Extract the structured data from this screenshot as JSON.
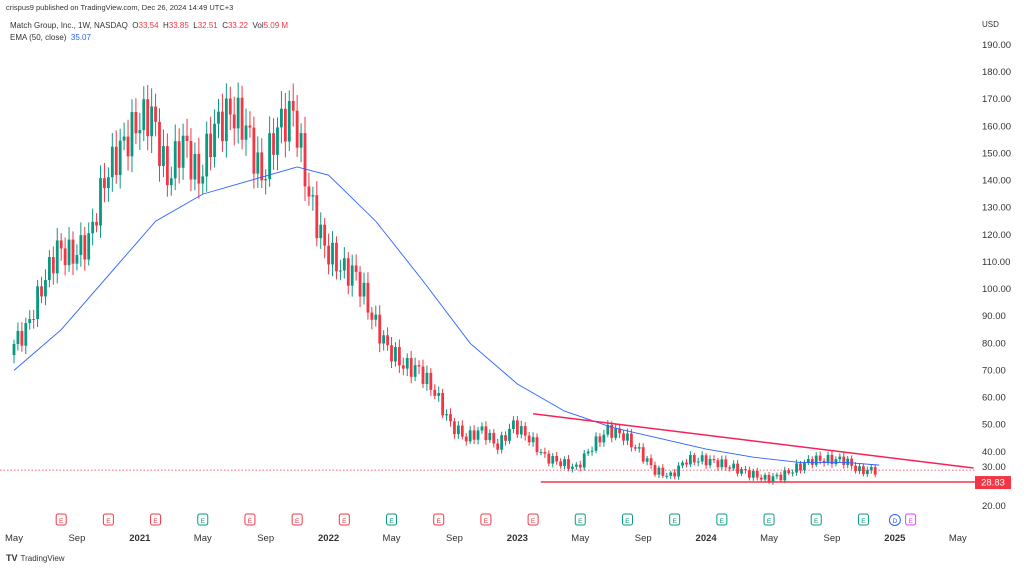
{
  "header": {
    "published": "crispus9 published on TradingView.com, Dec 26, 2024 14:49 UTC+3"
  },
  "legend": {
    "symbol": "Match Group, Inc., 1W, NASDAQ",
    "o_label": "O",
    "o": "33.54",
    "h_label": "H",
    "h": "33.85",
    "l_label": "L",
    "l": "32.51",
    "c_label": "C",
    "c": "33.22",
    "vol_label": "Vol",
    "vol": "5.09 M",
    "ema_label": "EMA (50, close)",
    "ema": "35.07"
  },
  "brand": "TradingView",
  "colors": {
    "up": "#089981",
    "down": "#f23645",
    "ema": "#2962ff",
    "trendline": "#f7215a",
    "support": "#f23645"
  },
  "chart_data": {
    "type": "candlestick",
    "currency": "USD",
    "ylim": [
      20,
      190
    ],
    "yticks": [
      "190.00",
      "180.00",
      "170.00",
      "160.00",
      "150.00",
      "140.00",
      "130.00",
      "120.00",
      "110.00",
      "100.00",
      "90.00",
      "80.00",
      "70.00",
      "60.00",
      "50.00",
      "40.00",
      "30.00",
      "20.00"
    ],
    "xticks": [
      [
        "2020-05",
        "May",
        false
      ],
      [
        "2020-09",
        "Sep",
        false
      ],
      [
        "2021-01",
        "2021",
        true
      ],
      [
        "2021-05",
        "May",
        false
      ],
      [
        "2021-09",
        "Sep",
        false
      ],
      [
        "2022-01",
        "2022",
        true
      ],
      [
        "2022-05",
        "May",
        false
      ],
      [
        "2022-09",
        "Sep",
        false
      ],
      [
        "2023-01",
        "2023",
        true
      ],
      [
        "2023-05",
        "May",
        false
      ],
      [
        "2023-09",
        "Sep",
        false
      ],
      [
        "2024-01",
        "2024",
        true
      ],
      [
        "2024-05",
        "May",
        false
      ],
      [
        "2024-09",
        "Sep",
        false
      ],
      [
        "2025-01",
        "2025",
        true
      ],
      [
        "2025-05",
        "May",
        false
      ]
    ],
    "monthly_close": [
      [
        "2020-05",
        78
      ],
      [
        "2020-06",
        85
      ],
      [
        "2020-07",
        100
      ],
      [
        "2020-08",
        115
      ],
      [
        "2020-09",
        112
      ],
      [
        "2020-10",
        118
      ],
      [
        "2020-11",
        140
      ],
      [
        "2020-12",
        152
      ],
      [
        "2021-01",
        160
      ],
      [
        "2021-02",
        165
      ],
      [
        "2021-03",
        140
      ],
      [
        "2021-04",
        155
      ],
      [
        "2021-05",
        140
      ],
      [
        "2021-06",
        160
      ],
      [
        "2021-07",
        165
      ],
      [
        "2021-08",
        160
      ],
      [
        "2021-09",
        140
      ],
      [
        "2021-10",
        160
      ],
      [
        "2021-11",
        165
      ],
      [
        "2021-12",
        135
      ],
      [
        "2022-01",
        115
      ],
      [
        "2022-02",
        108
      ],
      [
        "2022-03",
        105
      ],
      [
        "2022-04",
        90
      ],
      [
        "2022-05",
        78
      ],
      [
        "2022-06",
        72
      ],
      [
        "2022-07",
        70
      ],
      [
        "2022-08",
        62
      ],
      [
        "2022-09",
        50
      ],
      [
        "2022-10",
        45
      ],
      [
        "2022-11",
        48
      ],
      [
        "2022-12",
        42
      ],
      [
        "2023-01",
        50
      ],
      [
        "2023-02",
        45
      ],
      [
        "2023-03",
        38
      ],
      [
        "2023-04",
        36
      ],
      [
        "2023-05",
        34
      ],
      [
        "2023-06",
        42
      ],
      [
        "2023-07",
        48
      ],
      [
        "2023-08",
        46
      ],
      [
        "2023-09",
        40
      ],
      [
        "2023-10",
        33
      ],
      [
        "2023-11",
        31
      ],
      [
        "2023-12",
        37
      ],
      [
        "2024-01",
        37
      ],
      [
        "2024-02",
        36
      ],
      [
        "2024-03",
        34
      ],
      [
        "2024-04",
        32
      ],
      [
        "2024-05",
        30
      ],
      [
        "2024-06",
        31
      ],
      [
        "2024-07",
        34
      ],
      [
        "2024-08",
        37
      ],
      [
        "2024-09",
        37
      ],
      [
        "2024-10",
        37
      ],
      [
        "2024-11",
        33
      ],
      [
        "2024-12",
        33.22
      ]
    ],
    "ema50": [
      [
        "2020-05",
        70
      ],
      [
        "2020-08",
        85
      ],
      [
        "2020-11",
        105
      ],
      [
        "2021-02",
        125
      ],
      [
        "2021-05",
        135
      ],
      [
        "2021-08",
        140
      ],
      [
        "2021-11",
        145
      ],
      [
        "2022-01",
        142
      ],
      [
        "2022-04",
        125
      ],
      [
        "2022-07",
        103
      ],
      [
        "2022-10",
        80
      ],
      [
        "2023-01",
        65
      ],
      [
        "2023-04",
        55
      ],
      [
        "2023-07",
        49
      ],
      [
        "2023-10",
        45
      ],
      [
        "2024-01",
        41
      ],
      [
        "2024-04",
        38
      ],
      [
        "2024-07",
        36
      ],
      [
        "2024-10",
        36
      ],
      [
        "2024-12",
        35.07
      ]
    ],
    "last_price": 33.22,
    "support": {
      "value": 28.83,
      "label": "28.83",
      "from": "2023-03"
    },
    "resistance": {
      "from": [
        "2023-02",
        54
      ],
      "to": [
        "2025-06",
        34
      ]
    },
    "events": [
      [
        "2020-08",
        "E",
        "down"
      ],
      [
        "2020-11",
        "E",
        "down"
      ],
      [
        "2021-02",
        "E",
        "down"
      ],
      [
        "2021-05",
        "E",
        "up"
      ],
      [
        "2021-08",
        "E",
        "down"
      ],
      [
        "2021-11",
        "E",
        "down"
      ],
      [
        "2022-02",
        "E",
        "down"
      ],
      [
        "2022-05",
        "E",
        "up"
      ],
      [
        "2022-08",
        "E",
        "down"
      ],
      [
        "2022-11",
        "E",
        "down"
      ],
      [
        "2023-02",
        "E",
        "down"
      ],
      [
        "2023-05",
        "E",
        "up"
      ],
      [
        "2023-08",
        "E",
        "up"
      ],
      [
        "2023-11",
        "E",
        "up"
      ],
      [
        "2024-02",
        "E",
        "up"
      ],
      [
        "2024-05",
        "E",
        "up"
      ],
      [
        "2024-08",
        "E",
        "up"
      ],
      [
        "2024-11",
        "E",
        "up"
      ],
      [
        "2025-01",
        "D",
        "dividend"
      ],
      [
        "2025-02",
        "E",
        "future"
      ]
    ]
  }
}
